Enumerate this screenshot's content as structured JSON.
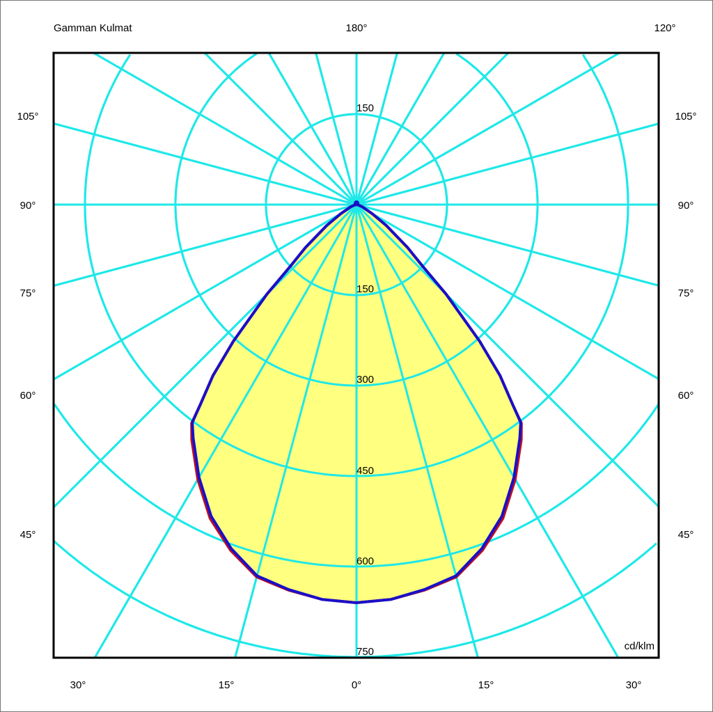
{
  "chart_data": {
    "type": "polar",
    "title": "Gamman Kulmat",
    "unit": "cd/klm",
    "top_labels": {
      "center": "180°",
      "right": "120°"
    },
    "side_angle_labels": [
      "105°",
      "90°",
      "75°",
      "60°",
      "45°"
    ],
    "bottom_angle_labels": [
      "30°",
      "15°",
      "0°",
      "15°",
      "30°"
    ],
    "radial_ticks": [
      150,
      300,
      450,
      600,
      750
    ],
    "top_radial_tick": "150",
    "radial_grid_step_deg": 15,
    "rmax": 750,
    "grid": true,
    "colors": {
      "grid": "#1ee8e8",
      "fill": "#ffff80",
      "curve_primary": "#1a10c8",
      "curve_secondary": "#c01020",
      "frame": "#000000"
    },
    "series": [
      {
        "color": "#1a10c8",
        "angles_deg": [
          0,
          5,
          10,
          15,
          20,
          25,
          30,
          35,
          37,
          38,
          40,
          42,
          45,
          47,
          50,
          55,
          60,
          70,
          80,
          90
        ],
        "values": [
          660,
          657,
          648,
          637,
          607,
          570,
          522,
          472,
          452,
          420,
          370,
          305,
          210,
          150,
          110,
          60,
          30,
          10,
          3,
          0
        ]
      },
      {
        "color": "#c01020",
        "angles_deg": [
          0,
          5,
          10,
          15,
          20,
          25,
          30,
          35,
          37,
          38,
          40,
          42,
          45,
          47,
          50,
          55,
          60,
          70,
          80,
          90
        ],
        "values": [
          660,
          657,
          649,
          639,
          610,
          574,
          526,
          476,
          454,
          420,
          370,
          305,
          210,
          150,
          110,
          60,
          30,
          10,
          3,
          0
        ]
      }
    ]
  }
}
